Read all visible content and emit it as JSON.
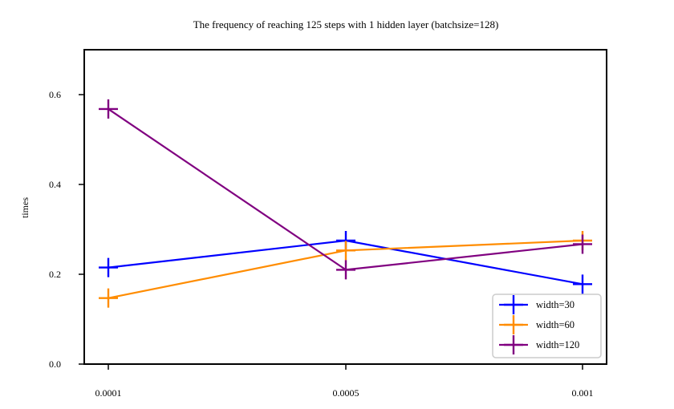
{
  "chart_data": {
    "type": "line",
    "title": "The frequency of reaching 125 steps with 1 hidden layer (batchsize=128)",
    "xlabel": "",
    "ylabel": "times",
    "categories": [
      "0.0001",
      "0.0005",
      "0.001"
    ],
    "ylim": [
      0.0,
      0.7
    ],
    "yticks": [
      "0.0",
      "0.2",
      "0.4",
      "0.6"
    ],
    "grid": false,
    "legend_position": "lower-right",
    "marker": "plus",
    "series": [
      {
        "name": "width=30",
        "color": "#0000ff",
        "values": [
          0.215,
          0.275,
          0.178
        ]
      },
      {
        "name": "width=60",
        "color": "#ff8c00",
        "values": [
          0.147,
          0.253,
          0.275
        ]
      },
      {
        "name": "width=120",
        "color": "#800080",
        "values": [
          0.568,
          0.21,
          0.267
        ]
      }
    ]
  }
}
